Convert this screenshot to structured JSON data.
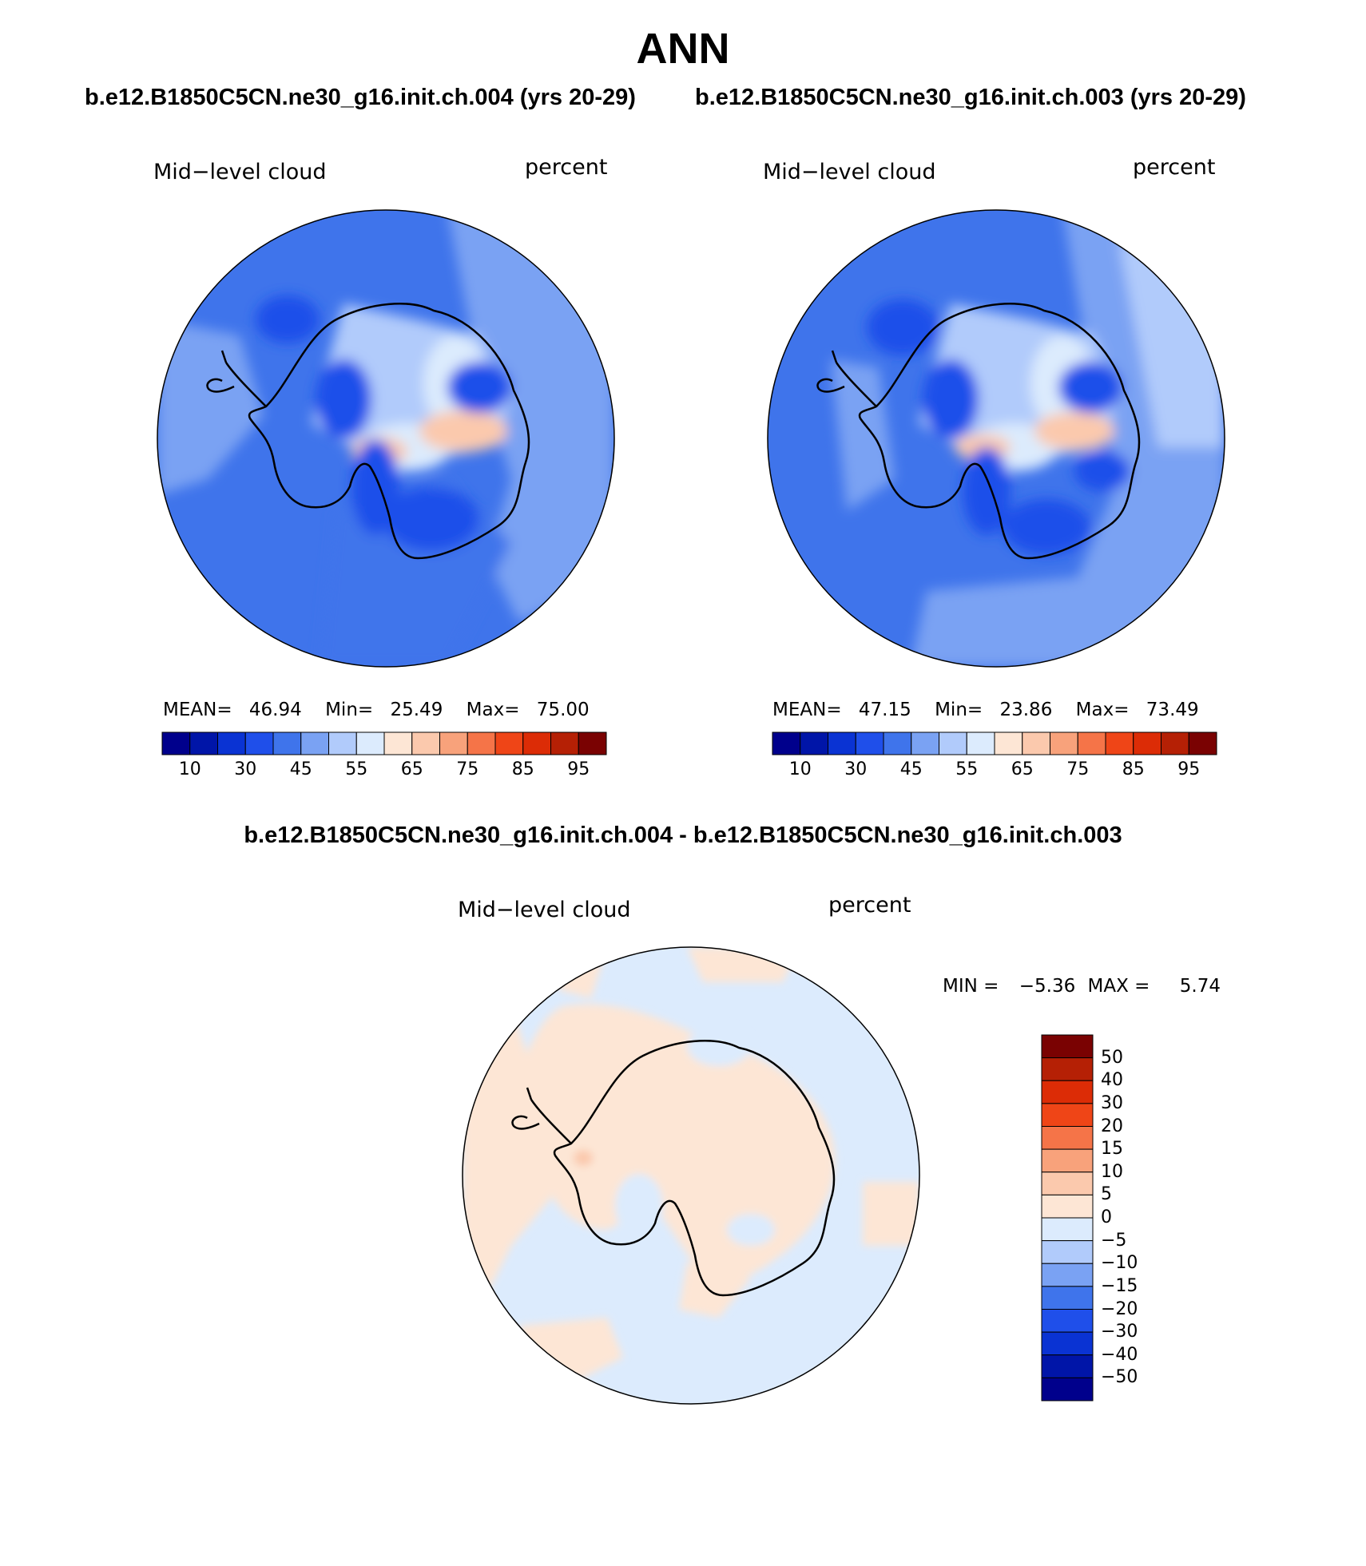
{
  "header": {
    "title": "ANN",
    "case1_title": "b.e12.B1850C5CN.ne30_g16.init.ch.004 (yrs 20-29)",
    "case2_title": "b.e12.B1850C5CN.ne30_g16.init.ch.003 (yrs 20-29)",
    "diff_title": "b.e12.B1850C5CN.ne30_g16.init.ch.004 - b.e12.B1850C5CN.ne30_g16.init.ch.003"
  },
  "panels": [
    {
      "variable": "Mid−level cloud",
      "units": "percent",
      "mean_label": "MEAN=",
      "mean": "46.94",
      "min_label": "Min=",
      "min": "25.49",
      "max_label": "Max=",
      "max": "75.00"
    },
    {
      "variable": "Mid−level cloud",
      "units": "percent",
      "mean_label": "MEAN=",
      "mean": "47.15",
      "min_label": "Min=",
      "min": "23.86",
      "max_label": "Max=",
      "max": "73.49"
    },
    {
      "variable": "Mid−level cloud",
      "units": "percent",
      "min_label": "MIN =",
      "min": "−5.36",
      "max_label": "MAX =",
      "max": "5.74"
    }
  ],
  "colorbar_main": {
    "labels": [
      "10",
      "30",
      "45",
      "55",
      "65",
      "75",
      "85",
      "95"
    ],
    "colors": [
      "#00008c",
      "#0015a8",
      "#0a33d3",
      "#1f4fea",
      "#3f74eb",
      "#7aa2f3",
      "#b1cbfb",
      "#dcebfd",
      "#fde6d5",
      "#fbc9ad",
      "#f8a27b",
      "#f57448",
      "#ef4517",
      "#dc2c06",
      "#b52005",
      "#7a0202"
    ]
  },
  "colorbar_diff": {
    "labels": [
      "50",
      "40",
      "30",
      "20",
      "15",
      "10",
      "5",
      "0",
      "−5",
      "−10",
      "−15",
      "−20",
      "−30",
      "−40",
      "−50"
    ],
    "colors": [
      "#7a0202",
      "#b52005",
      "#dc2c06",
      "#ef4517",
      "#f57448",
      "#f8a27b",
      "#fbc9ad",
      "#fde6d5",
      "#dcebfd",
      "#b1cbfb",
      "#7aa2f3",
      "#3f74eb",
      "#1f4fea",
      "#0a33d3",
      "#0015a8",
      "#00008c"
    ]
  },
  "chart_data": [
    {
      "type": "heatmap",
      "projection": "south polar stereographic",
      "title": "b.e12.B1850C5CN.ne30_g16.init.ch.004 (yrs 20-29)",
      "variable": "Mid−level cloud",
      "units": "percent",
      "stats": {
        "mean": 46.94,
        "min": 25.49,
        "max": 75.0
      },
      "contour_levels": [
        10,
        20,
        30,
        40,
        45,
        50,
        55,
        60,
        65,
        70,
        75,
        80,
        85,
        90,
        95
      ]
    },
    {
      "type": "heatmap",
      "projection": "south polar stereographic",
      "title": "b.e12.B1850C5CN.ne30_g16.init.ch.003 (yrs 20-29)",
      "variable": "Mid−level cloud",
      "units": "percent",
      "stats": {
        "mean": 47.15,
        "min": 23.86,
        "max": 73.49
      },
      "contour_levels": [
        10,
        20,
        30,
        40,
        45,
        50,
        55,
        60,
        65,
        70,
        75,
        80,
        85,
        90,
        95
      ]
    },
    {
      "type": "heatmap",
      "projection": "south polar stereographic",
      "title": "b.e12.B1850C5CN.ne30_g16.init.ch.004 - b.e12.B1850C5CN.ne30_g16.init.ch.003",
      "variable": "Mid−level cloud",
      "units": "percent",
      "stats": {
        "min": -5.36,
        "max": 5.74
      },
      "contour_levels": [
        -50,
        -40,
        -30,
        -20,
        -15,
        -10,
        -5,
        0,
        5,
        10,
        15,
        20,
        30,
        40,
        50
      ]
    }
  ]
}
